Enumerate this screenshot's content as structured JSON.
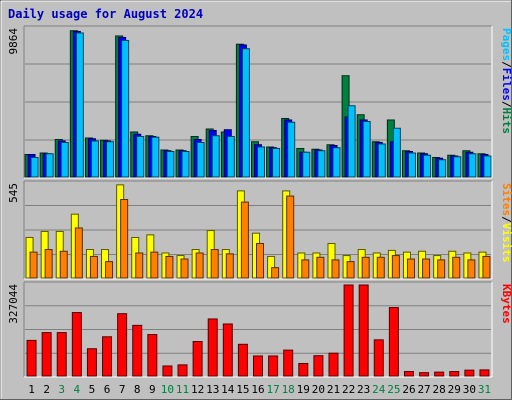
{
  "title": "Daily usage for August 2024",
  "colors": {
    "background": "#c0c0c0",
    "plot_bg": "#c0c0c0",
    "grid": "#808080",
    "title": "#0000c0",
    "hits": "#008040",
    "files": "#0000ff",
    "pages": "#00c0ff",
    "visits": "#ffff00",
    "sites": "#ff8000",
    "kbytes": "#ff0000",
    "weekend": "#008040",
    "weekday": "#000000"
  },
  "chart_data": [
    {
      "type": "bar",
      "name": "hits-files-pages",
      "categories": [
        "1",
        "2",
        "3",
        "4",
        "5",
        "6",
        "7",
        "8",
        "9",
        "10",
        "11",
        "12",
        "13",
        "14",
        "15",
        "16",
        "17",
        "18",
        "19",
        "20",
        "21",
        "22",
        "23",
        "24",
        "25",
        "26",
        "27",
        "28",
        "29",
        "30",
        "31"
      ],
      "ylim": [
        0,
        9864
      ],
      "tick_label": "9864",
      "side_label": [
        "Pages",
        "/",
        "Files",
        "/",
        "Hits"
      ],
      "side_colors": [
        "#00c0ff",
        "#000000",
        "#0000ff",
        "#000000",
        "#008040"
      ],
      "series": [
        {
          "name": "Hits",
          "values": [
            1500,
            1600,
            2500,
            9750,
            2600,
            2450,
            9400,
            3000,
            2750,
            1800,
            1800,
            2700,
            3200,
            3000,
            8850,
            2350,
            2000,
            3900,
            1900,
            1850,
            2150,
            6750,
            4150,
            2350,
            3800,
            1750,
            1600,
            1300,
            1450,
            1750,
            1550
          ]
        },
        {
          "name": "Files",
          "values": [
            1500,
            1550,
            2400,
            9700,
            2550,
            2400,
            9300,
            2850,
            2700,
            1750,
            1750,
            2500,
            3100,
            3150,
            8800,
            2150,
            1950,
            3800,
            1650,
            1800,
            2100,
            4000,
            3800,
            2300,
            2350,
            1700,
            1550,
            1250,
            1400,
            1650,
            1500
          ]
        },
        {
          "name": "Pages",
          "values": [
            1300,
            1550,
            2300,
            9600,
            2400,
            2350,
            9100,
            2700,
            2650,
            1700,
            1700,
            2300,
            2750,
            2700,
            8550,
            2000,
            1900,
            3650,
            1650,
            1750,
            1950,
            4750,
            3700,
            2200,
            3250,
            1600,
            1450,
            1150,
            1350,
            1550,
            1400
          ]
        }
      ]
    },
    {
      "type": "bar",
      "name": "visits-sites",
      "categories": [
        "1",
        "2",
        "3",
        "4",
        "5",
        "6",
        "7",
        "8",
        "9",
        "10",
        "11",
        "12",
        "13",
        "14",
        "15",
        "16",
        "17",
        "18",
        "19",
        "20",
        "21",
        "22",
        "23",
        "24",
        "25",
        "26",
        "27",
        "28",
        "29",
        "30",
        "31"
      ],
      "ylim": [
        0,
        545
      ],
      "tick_label": "545",
      "side_label": [
        "Sites",
        "/",
        "Visits"
      ],
      "side_colors": [
        "#ff8000",
        "#000000",
        "#ffff00"
      ],
      "series": [
        {
          "name": "Visits",
          "values": [
            235,
            270,
            270,
            370,
            165,
            165,
            540,
            235,
            250,
            145,
            130,
            165,
            275,
            165,
            505,
            260,
            125,
            505,
            145,
            145,
            200,
            130,
            165,
            145,
            160,
            150,
            155,
            130,
            155,
            145,
            150
          ]
        },
        {
          "name": "Sites",
          "values": [
            150,
            165,
            155,
            290,
            125,
            95,
            455,
            145,
            150,
            125,
            110,
            145,
            165,
            140,
            440,
            200,
            60,
            475,
            105,
            120,
            105,
            95,
            120,
            120,
            130,
            110,
            110,
            105,
            120,
            105,
            125
          ]
        }
      ]
    },
    {
      "type": "bar",
      "name": "kbytes",
      "categories": [
        "1",
        "2",
        "3",
        "4",
        "5",
        "6",
        "7",
        "8",
        "9",
        "10",
        "11",
        "12",
        "13",
        "14",
        "15",
        "16",
        "17",
        "18",
        "19",
        "20",
        "21",
        "22",
        "23",
        "24",
        "25",
        "26",
        "27",
        "28",
        "29",
        "30",
        "31"
      ],
      "ylim": [
        0,
        327044
      ],
      "tick_label": "327044",
      "side_label": [
        "KBytes"
      ],
      "side_colors": [
        "#ff0000"
      ],
      "series": [
        {
          "name": "KBytes",
          "values": [
            128000,
            156000,
            156000,
            228000,
            98000,
            141000,
            224000,
            182000,
            149000,
            36000,
            40000,
            124000,
            205000,
            187000,
            114000,
            72000,
            72000,
            93000,
            45000,
            73000,
            82000,
            327044,
            327044,
            130000,
            246000,
            16000,
            12000,
            14000,
            16000,
            21000,
            22000
          ]
        }
      ]
    }
  ],
  "x_axis": {
    "labels": [
      "1",
      "2",
      "3",
      "4",
      "5",
      "6",
      "7",
      "8",
      "9",
      "10",
      "11",
      "12",
      "13",
      "14",
      "15",
      "16",
      "17",
      "18",
      "19",
      "20",
      "21",
      "22",
      "23",
      "24",
      "25",
      "26",
      "27",
      "28",
      "29",
      "30",
      "31"
    ],
    "weekend": [
      false,
      false,
      true,
      true,
      false,
      false,
      false,
      false,
      false,
      true,
      true,
      false,
      false,
      false,
      false,
      false,
      true,
      true,
      false,
      false,
      false,
      false,
      false,
      true,
      true,
      false,
      false,
      false,
      false,
      false,
      true
    ]
  }
}
